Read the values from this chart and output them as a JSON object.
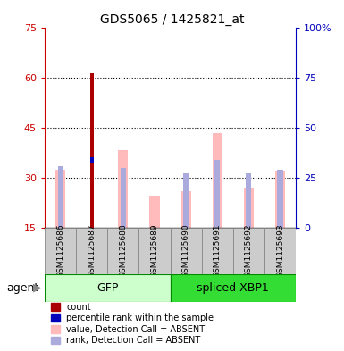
{
  "title": "GDS5065 / 1425821_at",
  "samples": [
    "GSM1125686",
    "GSM1125687",
    "GSM1125688",
    "GSM1125689",
    "GSM1125690",
    "GSM1125691",
    "GSM1125692",
    "GSM1125693"
  ],
  "group_gfp": {
    "name": "GFP",
    "indices": [
      0,
      1,
      2,
      3
    ],
    "facecolor": "#ccffcc",
    "edgecolor": "#008800"
  },
  "group_xbp": {
    "name": "spliced XBP1",
    "indices": [
      4,
      5,
      6,
      7
    ],
    "facecolor": "#33dd33",
    "edgecolor": "#008800"
  },
  "count_values": [
    null,
    61.5,
    null,
    null,
    null,
    null,
    null,
    null
  ],
  "percentile_values": [
    null,
    35.5,
    null,
    null,
    null,
    null,
    null,
    null
  ],
  "value_absent": [
    32.5,
    null,
    38.5,
    24.5,
    26.0,
    43.5,
    27.0,
    32.0
  ],
  "rank_absent": [
    33.5,
    null,
    33.0,
    null,
    31.5,
    35.5,
    31.5,
    32.5
  ],
  "ylim_left": [
    15,
    75
  ],
  "ylim_right": [
    0,
    100
  ],
  "yticks_left": [
    15,
    30,
    45,
    60,
    75
  ],
  "yticks_right": [
    0,
    25,
    50,
    75,
    100
  ],
  "left_axis_color": "#cc0000",
  "right_axis_color": "#0000bb",
  "bar_color_absent": "#ffbbbb",
  "rank_color_absent": "#aaaadd",
  "count_color": "#aa0000",
  "percentile_color": "#0000bb",
  "grid_lines": [
    30,
    45,
    60
  ],
  "sample_box_color": "#cccccc",
  "agent_label": "agent"
}
